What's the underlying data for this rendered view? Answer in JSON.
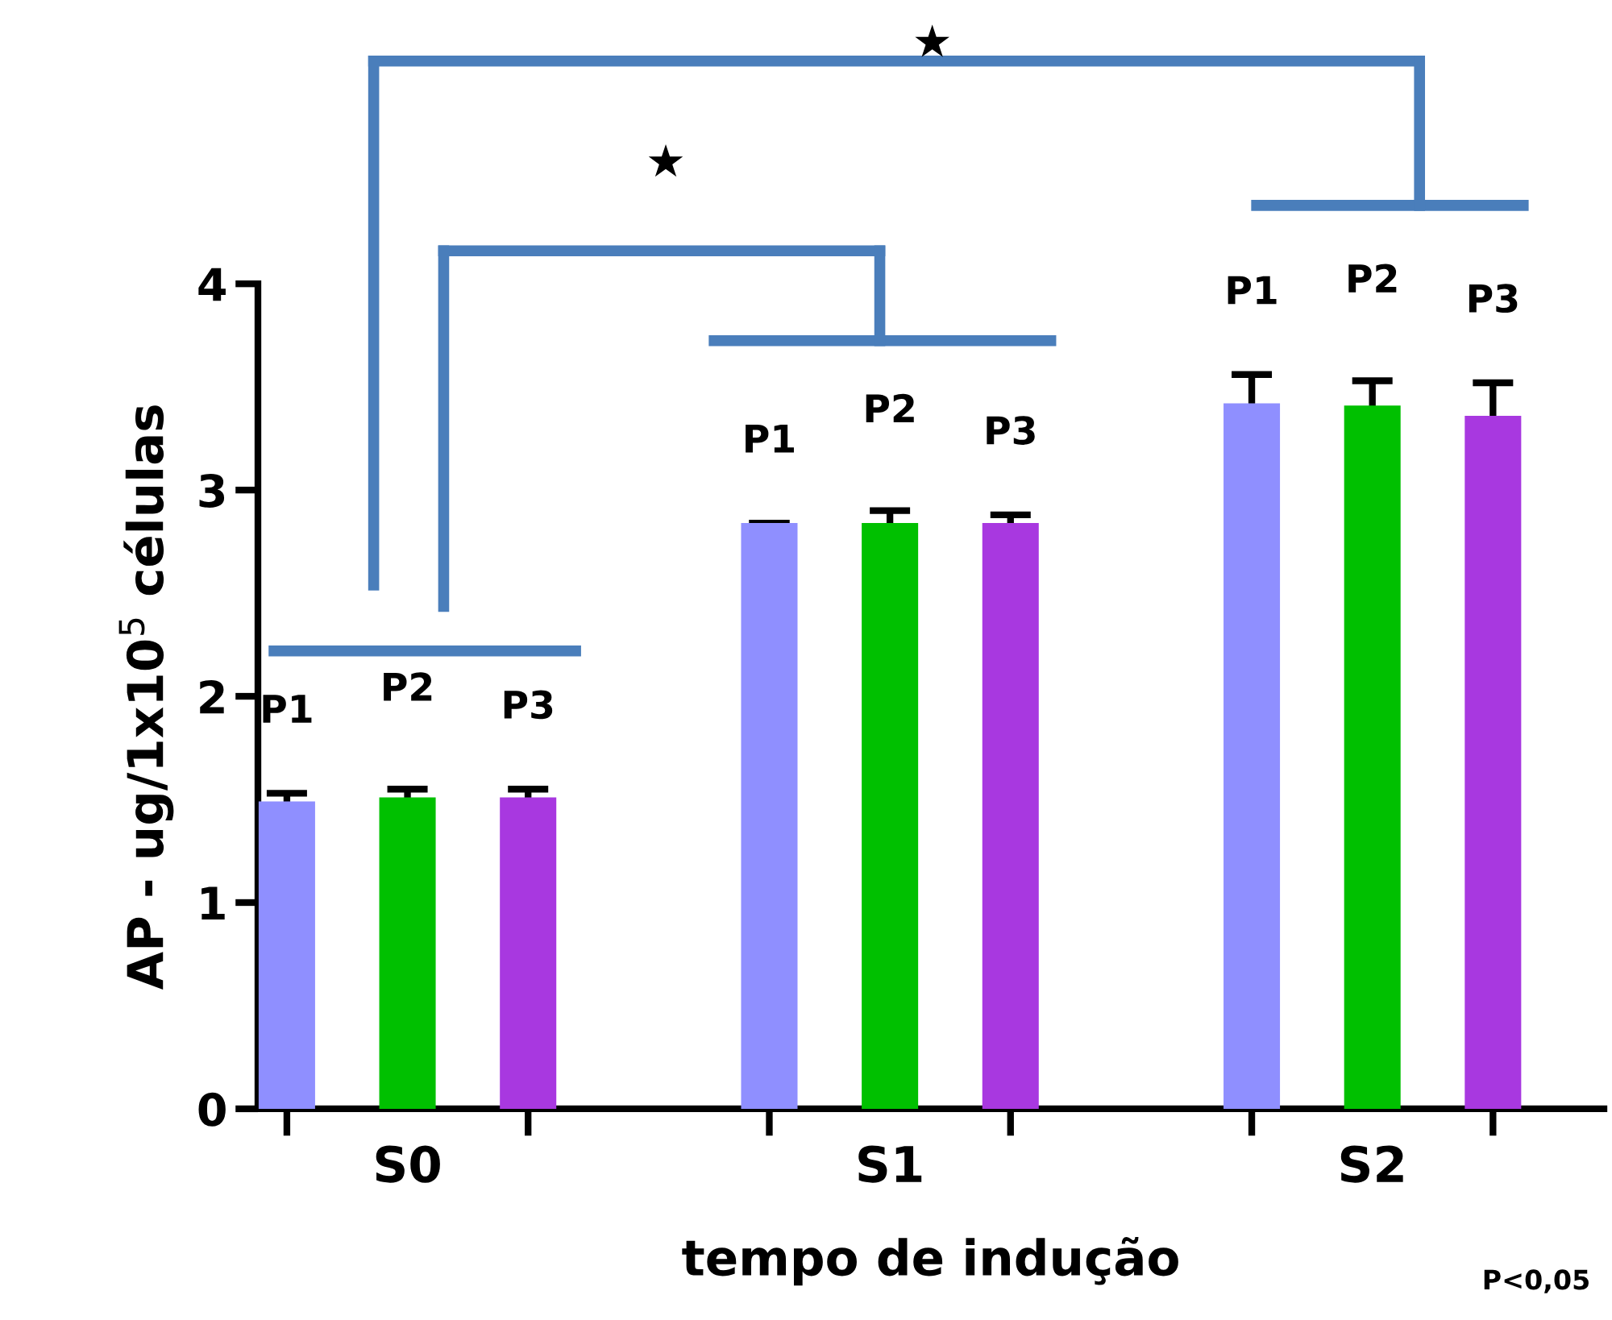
{
  "chart_data": {
    "type": "bar",
    "categories": [
      "S0",
      "S1",
      "S2"
    ],
    "xlabel": "tempo de indução",
    "ylabel": "AP - ug/1x10$^{5}$ células",
    "ylim": [
      0,
      4
    ],
    "yticks": [
      0,
      1,
      2,
      3,
      4
    ],
    "grid": false,
    "legend": false,
    "series": [
      {
        "name": "P1",
        "color": "#8f8fff",
        "values": [
          1.49,
          2.84,
          3.42
        ],
        "errors": [
          0.04,
          0,
          0.14
        ]
      },
      {
        "name": "P2",
        "color": "#00c000",
        "values": [
          1.51,
          2.84,
          3.41
        ],
        "errors": [
          0.04,
          0.06,
          0.12
        ]
      },
      {
        "name": "P3",
        "color": "#a838e0",
        "values": [
          1.51,
          2.84,
          3.36
        ],
        "errors": [
          0.04,
          0.04,
          0.16
        ]
      }
    ],
    "annotations": [
      "★",
      "★",
      "P<0,05"
    ]
  }
}
